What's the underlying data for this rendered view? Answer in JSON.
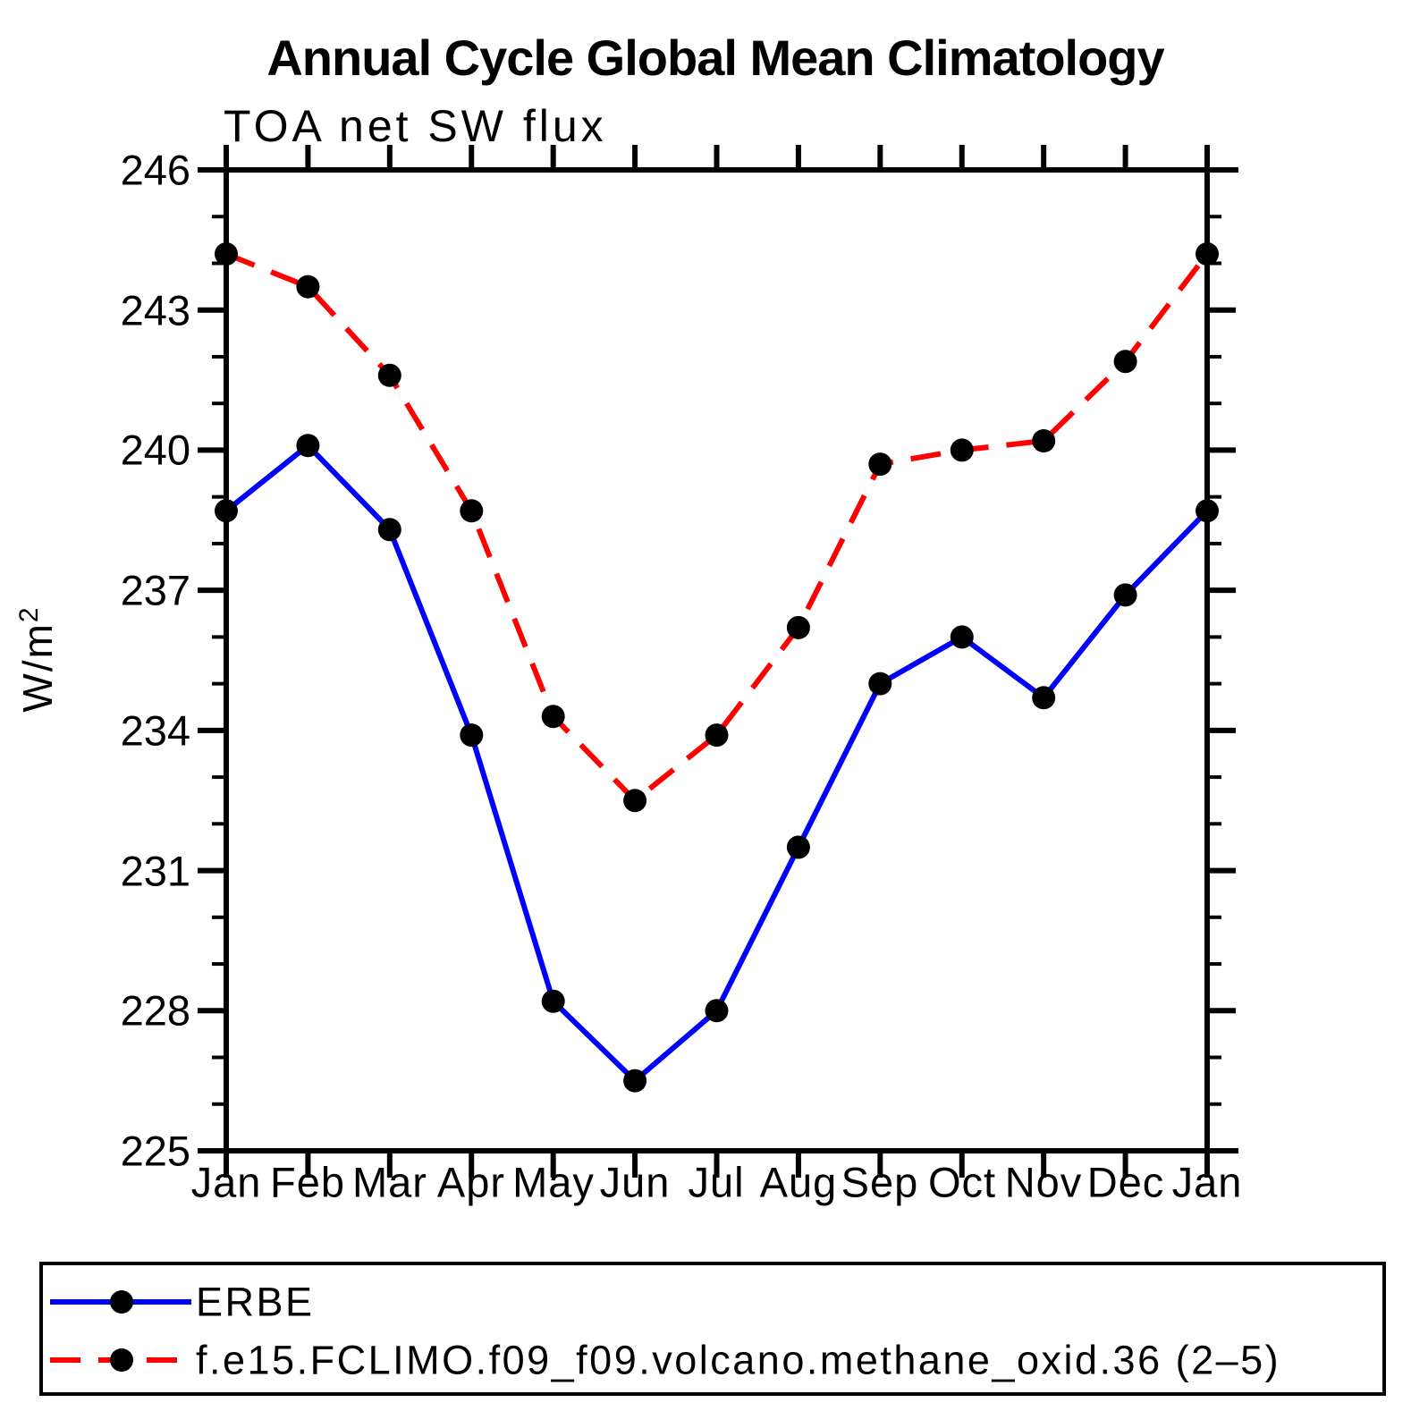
{
  "page": {
    "background": "#ffffff"
  },
  "chart_data": {
    "type": "line",
    "title": "Annual Cycle Global Mean Climatology",
    "subtitle": "TOA net SW flux",
    "ylabel_base": "W/m",
    "ylabel_exponent": "2",
    "x_categories": [
      "Jan",
      "Feb",
      "Mar",
      "Apr",
      "May",
      "Jun",
      "Jul",
      "Aug",
      "Sep",
      "Oct",
      "Nov",
      "Dec",
      "Jan"
    ],
    "ylim": [
      225,
      246
    ],
    "y_major_step": 3,
    "y_minor_step": 1,
    "y_tick_labels": [
      "246",
      "243",
      "240",
      "237",
      "234",
      "231",
      "228",
      "225"
    ],
    "grid": false,
    "legend_position": "bottom",
    "marker": {
      "shape": "filled-circle",
      "color": "#000000"
    },
    "series": [
      {
        "name": "ERBE",
        "color": "#0000ff",
        "line_style": "solid",
        "values": [
          238.7,
          240.1,
          238.3,
          233.9,
          228.2,
          226.5,
          228.0,
          231.5,
          235.0,
          236.0,
          234.7,
          236.9,
          238.7
        ]
      },
      {
        "name": "f.e15.FCLIMO.f09_f09.volcano.methane_oxid.36 (2–5)",
        "color": "#ff0000",
        "line_style": "dashed",
        "values": [
          244.2,
          243.5,
          241.6,
          238.7,
          234.3,
          232.5,
          233.9,
          236.2,
          239.7,
          240.0,
          240.2,
          241.9,
          244.2
        ]
      }
    ]
  }
}
